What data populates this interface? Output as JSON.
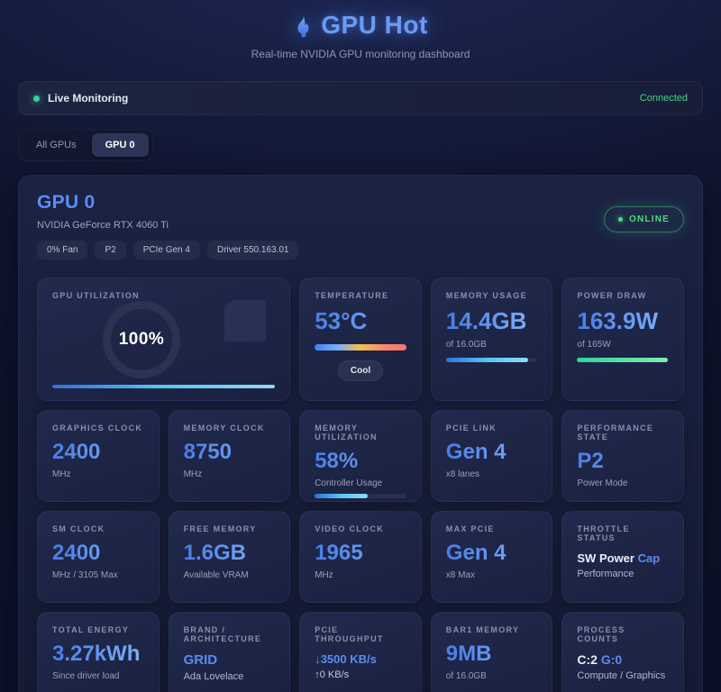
{
  "colors": {
    "accent_blue": "#5b8df0",
    "accent_green": "#4ade80",
    "online_green": "#4ade80"
  },
  "header": {
    "title": "GPU Hot",
    "subtitle": "Real-time NVIDIA GPU monitoring dashboard"
  },
  "status_bar": {
    "label": "Live Monitoring",
    "status": "Connected"
  },
  "tabs": {
    "all": "All GPUs",
    "gpu0": "GPU 0"
  },
  "gpu_panel": {
    "title": "GPU 0",
    "model": "NVIDIA GeForce RTX 4060 Ti",
    "badges": [
      "0% Fan",
      "P2",
      "PCIe Gen 4",
      "Driver 550.163.01"
    ],
    "online": "ONLINE"
  },
  "metrics": {
    "utilization": {
      "label": "GPU UTILIZATION",
      "value": "100%",
      "percent": 100
    },
    "temperature": {
      "label": "TEMPERATURE",
      "value": "53°C",
      "status": "Cool"
    },
    "memory_usage": {
      "label": "MEMORY USAGE",
      "value": "14.4GB",
      "sub": "of 16.0GB",
      "percent": 90
    },
    "power_draw": {
      "label": "POWER DRAW",
      "value": "163.9W",
      "sub": "of 165W",
      "percent": 99
    },
    "graphics_clock": {
      "label": "GRAPHICS CLOCK",
      "value": "2400",
      "sub": "MHz"
    },
    "memory_clock": {
      "label": "MEMORY CLOCK",
      "value": "8750",
      "sub": "MHz"
    },
    "memory_utilization": {
      "label": "MEMORY UTILIZATION",
      "value": "58%",
      "sub": "Controller Usage",
      "percent": 58
    },
    "pcie_link": {
      "label": "PCIE LINK",
      "value": "Gen 4",
      "sub": "x8 lanes"
    },
    "performance_state": {
      "label": "PERFORMANCE STATE",
      "value": "P2",
      "sub": "Power Mode"
    },
    "sm_clock": {
      "label": "SM CLOCK",
      "value": "2400",
      "sub": "MHz / 3105 Max"
    },
    "free_memory": {
      "label": "FREE MEMORY",
      "value": "1.6GB",
      "sub": "Available VRAM"
    },
    "video_clock": {
      "label": "VIDEO CLOCK",
      "value": "1965",
      "sub": "MHz"
    },
    "max_pcie": {
      "label": "MAX PCIE",
      "value": "Gen 4",
      "sub": "x8 Max"
    },
    "throttle": {
      "label": "THROTTLE STATUS",
      "value_strong": "SW Power",
      "value_accent": "Cap",
      "sub": "Performance"
    },
    "total_energy": {
      "label": "TOTAL ENERGY",
      "value": "3.27kWh",
      "sub": "Since driver load"
    },
    "brand": {
      "label": "BRAND / ARCHITECTURE",
      "value": "GRID",
      "sub": "Ada Lovelace"
    },
    "pcie_throughput": {
      "label": "PCIE THROUGHPUT",
      "rx": "↓3500 KB/s",
      "tx": "↑0 KB/s"
    },
    "bar1_memory": {
      "label": "BAR1 MEMORY",
      "value": "9MB",
      "sub": "of 16.0GB"
    },
    "process_counts": {
      "label": "PROCESS COUNTS",
      "value_strong": "C:2",
      "value_accent": "G:0",
      "sub": "Compute / Graphics"
    }
  }
}
